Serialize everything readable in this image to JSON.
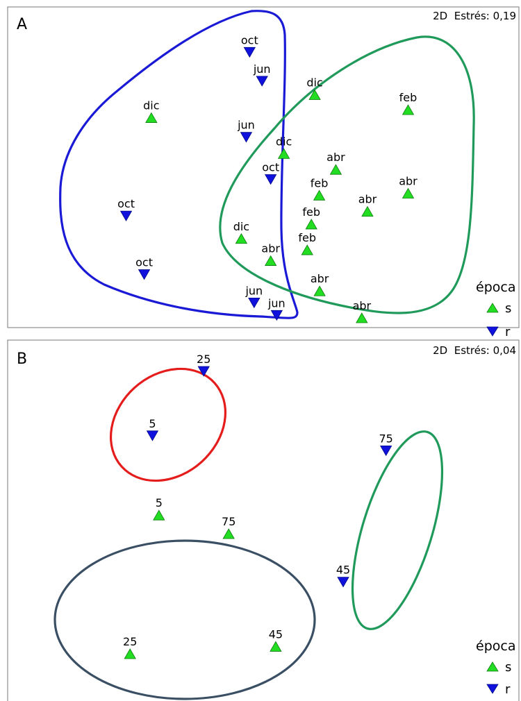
{
  "chart_data": [
    {
      "type": "scatter",
      "panel_label": "A",
      "stress_label": "2D  Estrés: 0,19",
      "legend": {
        "title": "época",
        "entries": [
          {
            "name": "s",
            "symbol": "triangle-up",
            "color": "#22dd22"
          },
          {
            "name": "r",
            "symbol": "triangle-down",
            "color": "#1111dd"
          }
        ],
        "placement": "bottom-right"
      },
      "grid": false,
      "xlim": [
        0,
        100
      ],
      "ylim": [
        0,
        100
      ],
      "points": [
        {
          "label": "oct",
          "group": "r",
          "x": 46,
          "y": 93.8
        },
        {
          "label": "jun",
          "group": "r",
          "x": 49.3,
          "y": 83.6
        },
        {
          "label": "dic",
          "group": "s",
          "x": 19.9,
          "y": 70.7
        },
        {
          "label": "jun",
          "group": "r",
          "x": 45.1,
          "y": 63.8
        },
        {
          "label": "dic",
          "group": "s",
          "x": 55.1,
          "y": 58.0
        },
        {
          "label": "oct",
          "group": "r",
          "x": 51.6,
          "y": 48.9
        },
        {
          "label": "oct",
          "group": "r",
          "x": 13.2,
          "y": 36.0
        },
        {
          "label": "dic",
          "group": "s",
          "x": 43.8,
          "y": 28.0
        },
        {
          "label": "oct",
          "group": "r",
          "x": 18.0,
          "y": 15.3
        },
        {
          "label": "abr",
          "group": "s",
          "x": 51.6,
          "y": 20.2
        },
        {
          "label": "jun",
          "group": "r",
          "x": 47.2,
          "y": 5.3
        },
        {
          "label": "jun",
          "group": "r",
          "x": 53.2,
          "y": 0.9
        },
        {
          "label": "dic",
          "group": "s",
          "x": 63.3,
          "y": 78.8
        },
        {
          "label": "feb",
          "group": "s",
          "x": 88.1,
          "y": 73.5
        },
        {
          "label": "abr",
          "group": "s",
          "x": 68.9,
          "y": 52.4
        },
        {
          "label": "feb",
          "group": "s",
          "x": 64.5,
          "y": 43.3
        },
        {
          "label": "abr",
          "group": "s",
          "x": 88.1,
          "y": 44.0
        },
        {
          "label": "abr",
          "group": "s",
          "x": 77.3,
          "y": 37.6
        },
        {
          "label": "feb",
          "group": "s",
          "x": 62.4,
          "y": 33.1
        },
        {
          "label": "feb",
          "group": "s",
          "x": 61.3,
          "y": 24.0
        },
        {
          "label": "abr",
          "group": "s",
          "x": 64.6,
          "y": 9.5
        },
        {
          "label": "abr",
          "group": "s",
          "x": 75.8,
          "y": 0.0
        }
      ]
    },
    {
      "type": "scatter",
      "panel_label": "B",
      "stress_label": "2D  Estrés: 0,04",
      "legend": {
        "title": "época",
        "entries": [
          {
            "name": "s",
            "symbol": "triangle-up",
            "color": "#22dd22"
          },
          {
            "name": "r",
            "symbol": "triangle-down",
            "color": "#1111dd"
          }
        ],
        "placement": "bottom-right"
      },
      "grid": false,
      "xlim": [
        0,
        100
      ],
      "ylim": [
        0,
        100
      ],
      "points": [
        {
          "label": "25",
          "group": "r",
          "x": 31.1,
          "y": 100
        },
        {
          "label": "5",
          "group": "r",
          "x": 15.3,
          "y": 77.2
        },
        {
          "label": "75",
          "group": "r",
          "x": 87.3,
          "y": 71.9
        },
        {
          "label": "5",
          "group": "s",
          "x": 17.3,
          "y": 49.1
        },
        {
          "label": "75",
          "group": "s",
          "x": 38.8,
          "y": 42.5
        },
        {
          "label": "45",
          "group": "r",
          "x": 74.1,
          "y": 25.4
        },
        {
          "label": "25",
          "group": "s",
          "x": 8.4,
          "y": 0.0
        },
        {
          "label": "45",
          "group": "s",
          "x": 53.3,
          "y": 2.6
        }
      ]
    }
  ]
}
